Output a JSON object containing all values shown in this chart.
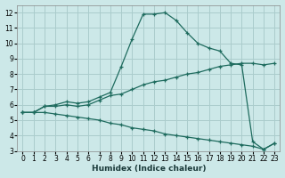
{
  "xlabel": "Humidex (Indice chaleur)",
  "background_color": "#cce8e8",
  "grid_color": "#aacccc",
  "line_color": "#1e6b5e",
  "xlim": [
    -0.5,
    23.5
  ],
  "ylim": [
    3,
    12.5
  ],
  "xticks": [
    0,
    1,
    2,
    3,
    4,
    5,
    6,
    7,
    8,
    9,
    10,
    11,
    12,
    13,
    14,
    15,
    16,
    17,
    18,
    19,
    20,
    21,
    22,
    23
  ],
  "yticks": [
    3,
    4,
    5,
    6,
    7,
    8,
    9,
    10,
    11,
    12
  ],
  "curve1_x": [
    0,
    1,
    2,
    3,
    4,
    5,
    6,
    7,
    8,
    9,
    10,
    11,
    12,
    13,
    14,
    15,
    16,
    17,
    18,
    19,
    20,
    21,
    22,
    23
  ],
  "curve1_y": [
    5.5,
    5.5,
    5.9,
    6.0,
    6.2,
    6.1,
    6.2,
    6.5,
    6.8,
    8.5,
    10.3,
    11.9,
    11.9,
    12.0,
    11.5,
    10.7,
    10.0,
    9.7,
    9.5,
    8.7,
    8.6,
    3.6,
    3.1,
    3.5
  ],
  "curve2_x": [
    0,
    1,
    2,
    3,
    4,
    5,
    6,
    7,
    8,
    9,
    10,
    11,
    12,
    13,
    14,
    15,
    16,
    17,
    18,
    19,
    20,
    21,
    22,
    23
  ],
  "curve2_y": [
    5.5,
    5.5,
    5.9,
    5.9,
    6.0,
    5.9,
    6.0,
    6.3,
    6.6,
    6.7,
    7.0,
    7.3,
    7.5,
    7.6,
    7.8,
    8.0,
    8.1,
    8.3,
    8.5,
    8.6,
    8.7,
    8.7,
    8.6,
    8.7
  ],
  "curve3_x": [
    0,
    1,
    2,
    3,
    4,
    5,
    6,
    7,
    8,
    9,
    10,
    11,
    12,
    13,
    14,
    15,
    16,
    17,
    18,
    19,
    20,
    21,
    22,
    23
  ],
  "curve3_y": [
    5.5,
    5.5,
    5.5,
    5.4,
    5.3,
    5.2,
    5.1,
    5.0,
    4.8,
    4.7,
    4.5,
    4.4,
    4.3,
    4.1,
    4.0,
    3.9,
    3.8,
    3.7,
    3.6,
    3.5,
    3.4,
    3.3,
    3.1,
    3.5
  ]
}
